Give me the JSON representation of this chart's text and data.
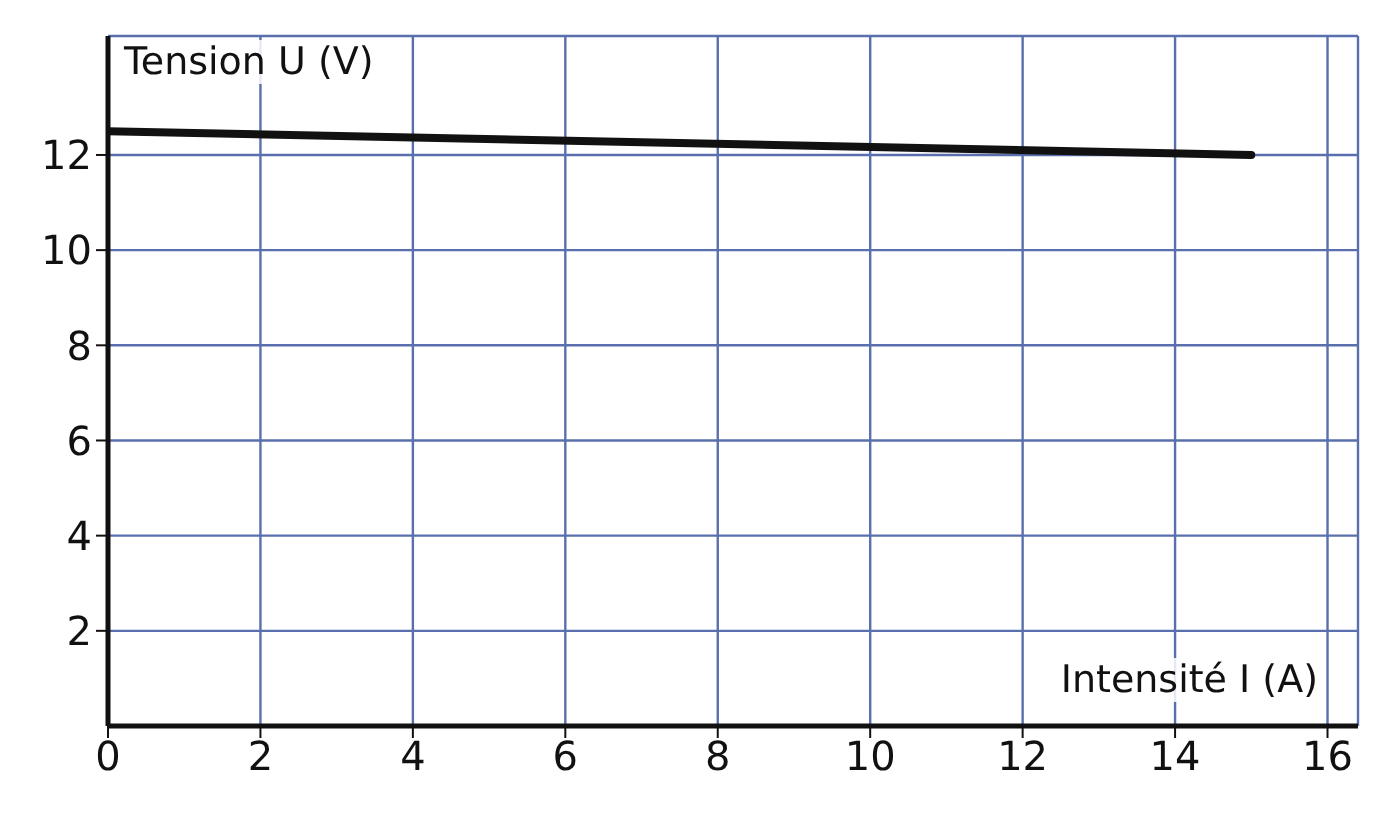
{
  "chart_data": {
    "type": "line",
    "xlabel": "Intensité I (A)",
    "ylabel": "Tension U (V)",
    "x": [
      0,
      15
    ],
    "series": [
      {
        "color": "#111111",
        "values": [
          12.5,
          12.0
        ]
      }
    ],
    "xlim": [
      0,
      16.4
    ],
    "xticks": [
      0,
      2,
      4,
      6,
      8,
      10,
      12,
      14,
      16
    ],
    "ylim": [
      0,
      14.5
    ],
    "yticks": [
      2,
      4,
      6,
      8,
      10,
      12
    ],
    "grid": true,
    "marker": "none",
    "line_style": "solid"
  }
}
